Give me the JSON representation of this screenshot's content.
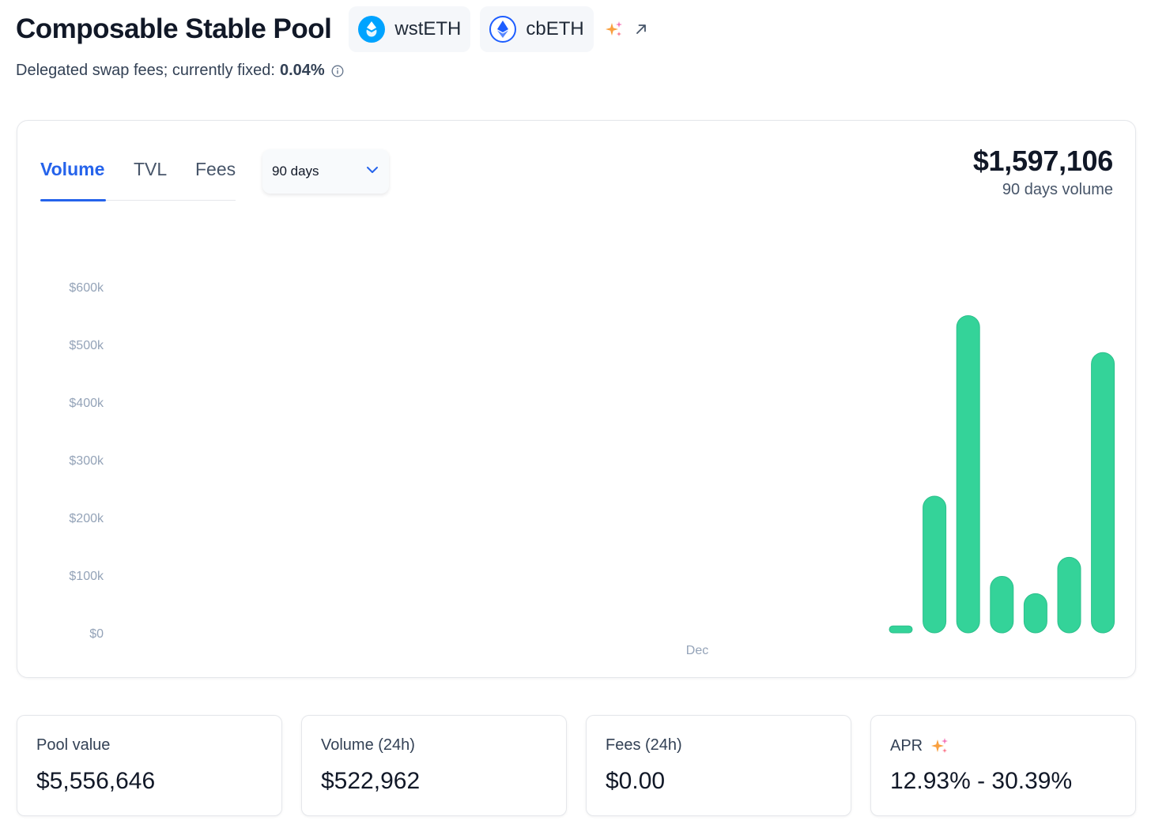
{
  "header": {
    "title": "Composable Stable Pool",
    "tokens": [
      {
        "symbol": "wstETH",
        "icon": "wsteth-icon",
        "color": "#00a3ff"
      },
      {
        "symbol": "cbETH",
        "icon": "cbeth-icon",
        "color": "#1e5eff"
      }
    ]
  },
  "subtitle": {
    "text": "Delegated swap fees; currently fixed:",
    "fee": "0.04%"
  },
  "chart_panel": {
    "tabs": [
      {
        "label": "Volume",
        "active": true
      },
      {
        "label": "TVL",
        "active": false
      },
      {
        "label": "Fees",
        "active": false
      }
    ],
    "range": "90 days",
    "total_value": "$1,597,106",
    "total_label": "90 days volume"
  },
  "chart_data": {
    "type": "bar",
    "y_tick_labels": [
      "$0",
      "$100k",
      "$200k",
      "$300k",
      "$400k",
      "$500k",
      "$600k"
    ],
    "y_ticks": [
      0,
      100000,
      200000,
      300000,
      400000,
      500000,
      600000
    ],
    "ylim": [
      0,
      600000
    ],
    "x_tick_label": "Dec",
    "values": [
      12000,
      237000,
      550000,
      98000,
      68000,
      131000,
      486000
    ],
    "bar_color": "#34d399",
    "grid": false
  },
  "stats": [
    {
      "label": "Pool value",
      "value": "$5,556,646"
    },
    {
      "label": "Volume (24h)",
      "value": "$522,962"
    },
    {
      "label": "Fees (24h)",
      "value": "$0.00"
    },
    {
      "label": "APR",
      "value": "12.93% - 30.39%"
    }
  ]
}
